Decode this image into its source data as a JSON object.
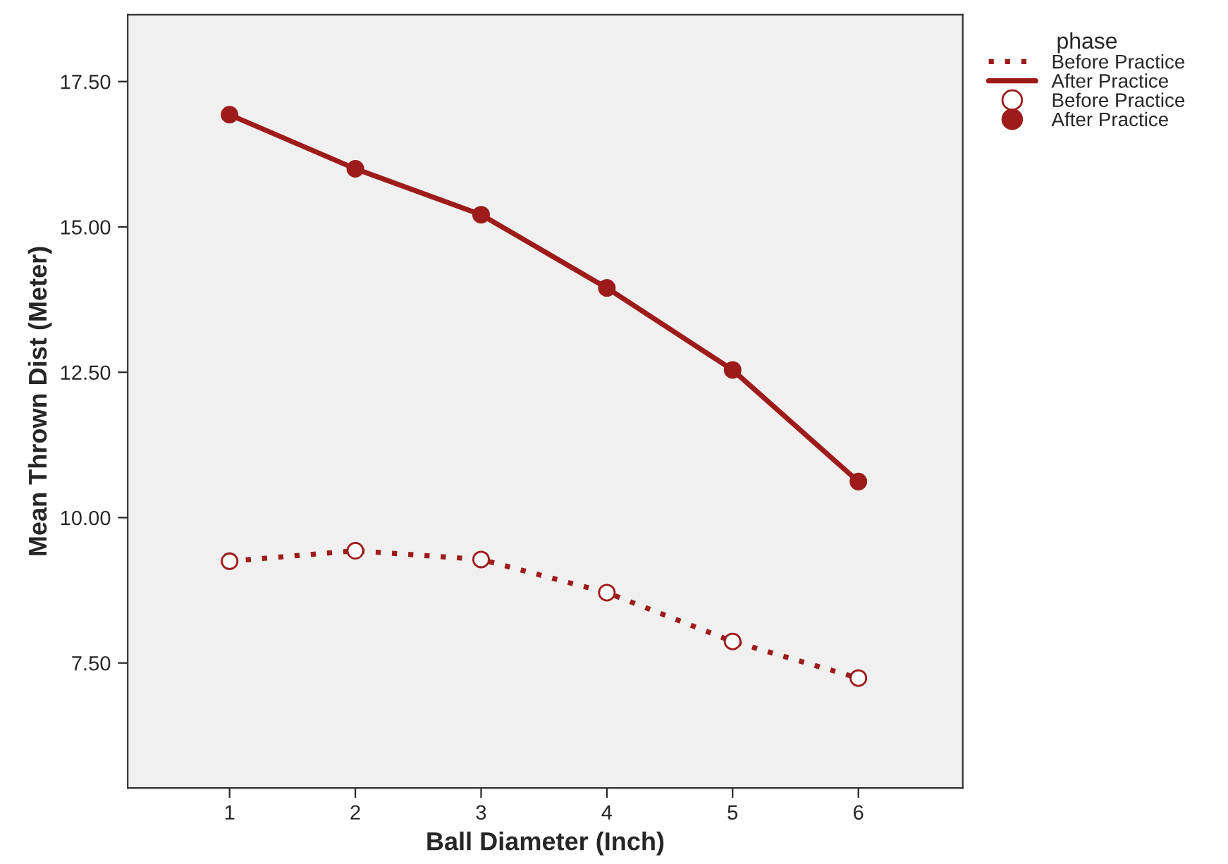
{
  "chart_data": {
    "type": "line",
    "xlabel": "Ball Diameter (Inch)",
    "ylabel": "Mean Thrown Dist (Meter)",
    "legend_title": "phase",
    "legend": "top right",
    "grid": false,
    "marker": "circle",
    "x": [
      1,
      2,
      3,
      4,
      5,
      6
    ],
    "xlim": [
      0.19,
      6.83
    ],
    "xticks": [
      1,
      2,
      3,
      4,
      5,
      6
    ],
    "ylim": [
      5.35,
      18.65
    ],
    "yticks": [
      {
        "value": 7.5,
        "label": "7.50"
      },
      {
        "value": 10,
        "label": "10.00"
      },
      {
        "value": 12.5,
        "label": "12.50"
      },
      {
        "value": 15,
        "label": "15.00"
      },
      {
        "value": 17.5,
        "label": "17.50"
      }
    ],
    "series": [
      {
        "name": "Before Practice",
        "color": "#9e1b1b",
        "line_style": "dotted",
        "values": [
          9.25,
          9.43,
          9.28,
          8.71,
          7.87,
          7.24
        ]
      },
      {
        "name": "After Practice",
        "color": "#9e1b1b",
        "line_style": "solid",
        "values": [
          16.93,
          16.0,
          15.21,
          13.95,
          12.54,
          10.62
        ]
      }
    ]
  }
}
